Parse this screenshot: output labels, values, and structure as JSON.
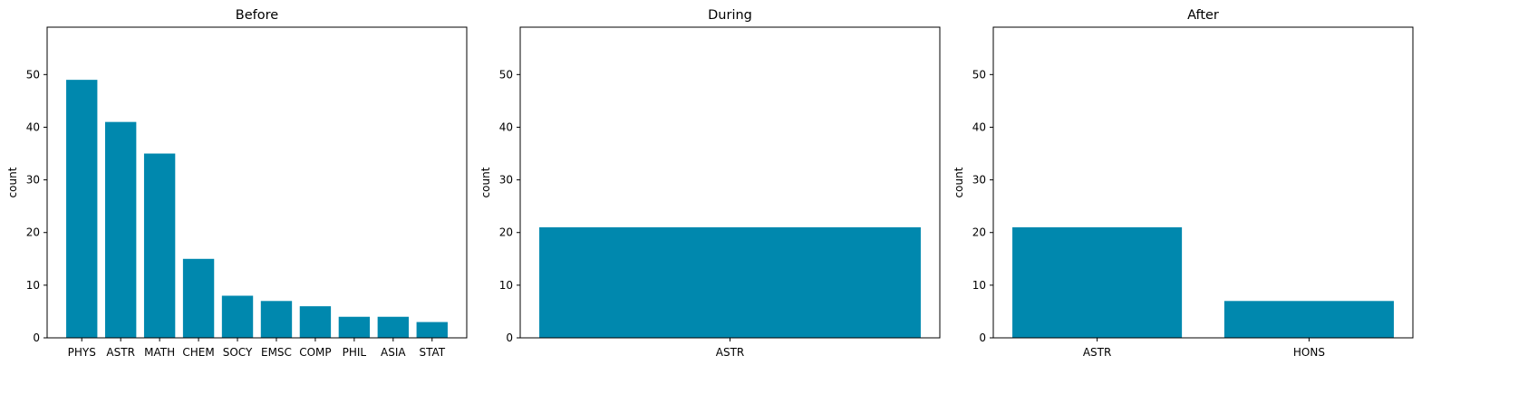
{
  "chart_data": [
    {
      "type": "bar",
      "title": "Before",
      "xlabel": "",
      "ylabel": "count",
      "ylim": [
        0,
        59
      ],
      "yticks": [
        0,
        10,
        20,
        30,
        40,
        50
      ],
      "categories": [
        "PHYS",
        "ASTR",
        "MATH",
        "CHEM",
        "SOCY",
        "EMSC",
        "COMP",
        "PHIL",
        "ASIA",
        "STAT"
      ],
      "values": [
        49,
        41,
        35,
        15,
        8,
        7,
        6,
        4,
        4,
        3
      ],
      "color": "#0088ae",
      "grid": false
    },
    {
      "type": "bar",
      "title": "During",
      "xlabel": "",
      "ylabel": "count",
      "ylim": [
        0,
        59
      ],
      "yticks": [
        0,
        10,
        20,
        30,
        40,
        50
      ],
      "categories": [
        "ASTR"
      ],
      "values": [
        21
      ],
      "color": "#0088ae",
      "grid": false
    },
    {
      "type": "bar",
      "title": "After",
      "xlabel": "",
      "ylabel": "count",
      "ylim": [
        0,
        59
      ],
      "yticks": [
        0,
        10,
        20,
        30,
        40,
        50
      ],
      "categories": [
        "ASTR",
        "HONS"
      ],
      "values": [
        21,
        7
      ],
      "color": "#0088ae",
      "grid": false
    }
  ]
}
